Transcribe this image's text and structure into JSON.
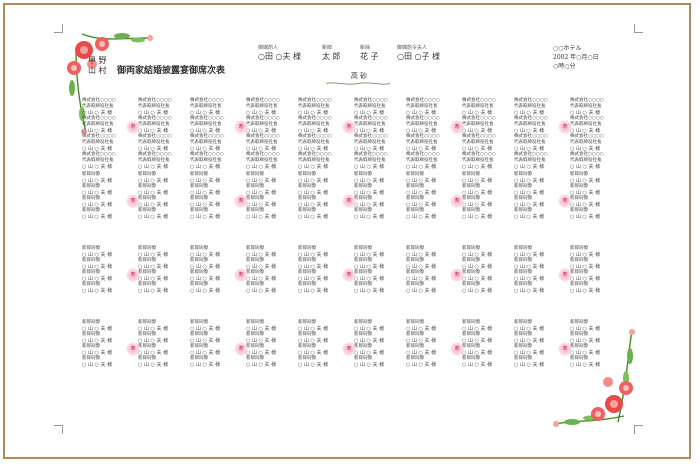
{
  "title": {
    "family_names": [
      "甲 野",
      "山 村"
    ],
    "text": "御両家結婚披露宴御席次表"
  },
  "header": {
    "mc_left_role": "御媒酌人",
    "mc_left_name": "○田 ○夫 様",
    "groom_role": "新郎",
    "groom_name": "太 郎",
    "bride_role": "新婦",
    "bride_name": "花 子",
    "mc_right_role": "御媒酌令夫人",
    "mc_right_name": "○田 ○子 様",
    "takasago": "高 砂"
  },
  "info": {
    "venue": "○○ホテル",
    "date": "2002 年○月○日",
    "time": "○時○分"
  },
  "seat_company_line1": "株式会社○○○○",
  "seat_company_line2": "代表取締役社長",
  "seat_relation": "新郎同僚",
  "seat_name": "○ 山 ○ 夫 様",
  "table_mark": "寿"
}
